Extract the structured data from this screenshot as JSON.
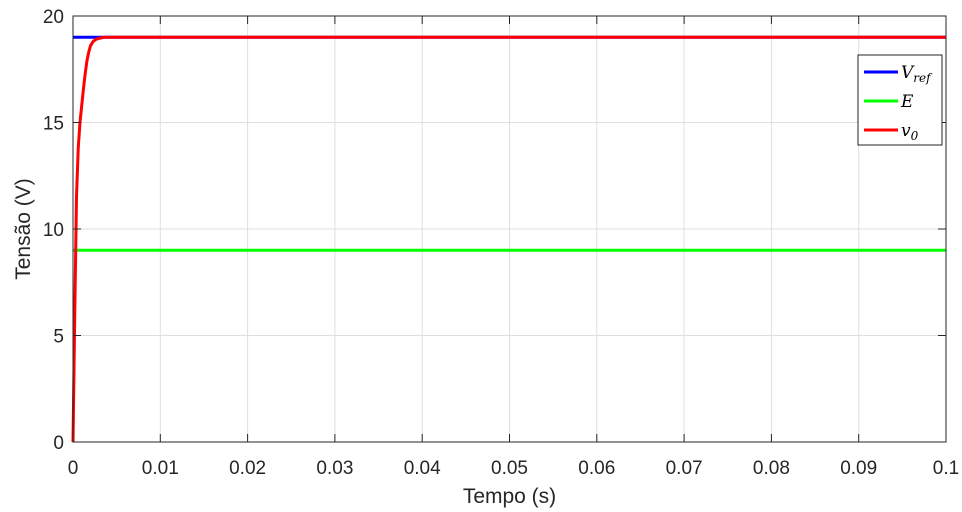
{
  "chart_data": {
    "type": "line",
    "xlabel": "Tempo (s)",
    "ylabel": "Tensão (V)",
    "xlim": [
      0,
      0.1
    ],
    "ylim": [
      0,
      20
    ],
    "xticks": [
      0,
      0.01,
      0.02,
      0.03,
      0.04,
      0.05,
      0.06,
      0.07,
      0.08,
      0.09,
      0.1
    ],
    "xtick_labels": [
      "0",
      "0.01",
      "0.02",
      "0.03",
      "0.04",
      "0.05",
      "0.06",
      "0.07",
      "0.08",
      "0.09",
      "0.1"
    ],
    "yticks": [
      0,
      5,
      10,
      15,
      20
    ],
    "ytick_labels": [
      "0",
      "5",
      "10",
      "15",
      "20"
    ],
    "grid": true,
    "legend_position": "top-right",
    "series": [
      {
        "name": "V_ref",
        "legend_main": "V",
        "legend_sub": "ref",
        "color": "#0000ff",
        "x": [
          0,
          0.1
        ],
        "y": [
          19,
          19
        ]
      },
      {
        "name": "E",
        "legend_main": "E",
        "legend_sub": "",
        "color": "#00ff00",
        "x": [
          0,
          0.1
        ],
        "y": [
          9,
          9
        ]
      },
      {
        "name": "v_0",
        "legend_main": "v",
        "legend_sub": "0",
        "color": "#ff0000",
        "x": [
          0,
          0.0002,
          0.0004,
          0.0006,
          0.0008,
          0.001,
          0.0012,
          0.0014,
          0.0016,
          0.0018,
          0.002,
          0.0023,
          0.0026,
          0.003,
          0.0035,
          0.004,
          0.1
        ],
        "y": [
          0,
          6,
          11.5,
          13.8,
          15.0,
          15.8,
          16.6,
          17.3,
          17.9,
          18.3,
          18.6,
          18.8,
          18.9,
          18.95,
          19,
          19,
          19
        ]
      }
    ]
  }
}
